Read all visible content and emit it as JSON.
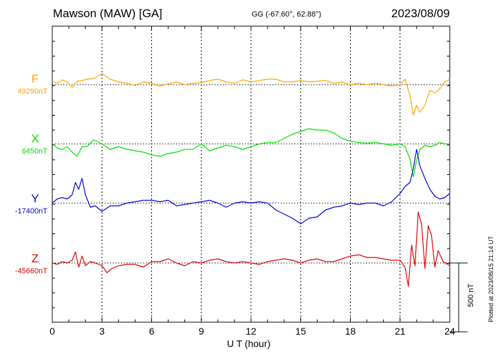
{
  "header": {
    "station": "Mawson (MAW)  [GA]",
    "coords": "GG (-67.60°,  62.88°)",
    "date": "2023/08/09"
  },
  "plotted_note": "Plotted at 2023/08/15 21:14 UT",
  "colors": {
    "F": "#f5a800",
    "X": "#00e000",
    "Y": "#0000e0",
    "Z": "#e00000"
  },
  "chart_data": {
    "type": "line",
    "xlabel": "U T (hour)",
    "xlim": [
      0,
      24
    ],
    "xticks": [
      0,
      3,
      6,
      9,
      12,
      15,
      18,
      21,
      24
    ],
    "scale_bar_label": "500 nT",
    "series": [
      {
        "name": "F",
        "baseline_label": "49290nT",
        "x": [
          0,
          0.3,
          0.6,
          0.9,
          1.2,
          1.5,
          1.8,
          2.1,
          2.5,
          3,
          3.5,
          4,
          4.5,
          5,
          5.5,
          6,
          6.5,
          7,
          7.5,
          8,
          8.5,
          9,
          9.5,
          10,
          10.5,
          11,
          11.5,
          12,
          12.5,
          13,
          13.5,
          14,
          14.5,
          15,
          15.5,
          16,
          16.5,
          17,
          17.5,
          18,
          18.5,
          19,
          19.5,
          20,
          20.5,
          21,
          21.3,
          21.6,
          21.8,
          22,
          22.2,
          22.5,
          22.8,
          23.1,
          23.4,
          23.7,
          24
        ],
        "values": [
          25,
          10,
          35,
          20,
          -20,
          25,
          30,
          40,
          45,
          80,
          40,
          20,
          10,
          -5,
          20,
          10,
          -10,
          5,
          20,
          0,
          10,
          15,
          30,
          40,
          20,
          10,
          35,
          20,
          30,
          40,
          40,
          20,
          20,
          30,
          20,
          25,
          30,
          10,
          20,
          0,
          10,
          0,
          10,
          0,
          -10,
          0,
          40,
          -80,
          -220,
          -150,
          -200,
          -150,
          -40,
          -60,
          -30,
          20,
          40
        ]
      },
      {
        "name": "X",
        "baseline_label": "6450nT",
        "x": [
          0,
          0.3,
          0.6,
          0.9,
          1.2,
          1.5,
          1.8,
          2.1,
          2.5,
          3,
          3.5,
          4,
          4.5,
          5,
          5.5,
          6,
          6.5,
          7,
          7.5,
          8,
          8.5,
          9,
          9.5,
          10,
          10.5,
          11,
          11.5,
          12,
          12.5,
          13,
          13.5,
          14,
          14.5,
          15,
          15.5,
          16,
          16.5,
          17,
          17.5,
          18,
          18.5,
          19,
          19.5,
          20,
          20.5,
          21,
          21.3,
          21.6,
          21.8,
          22,
          22.2,
          22.5,
          22.8,
          23.1,
          23.4,
          23.7,
          24
        ],
        "values": [
          5,
          -30,
          -40,
          -20,
          -60,
          -90,
          -20,
          -20,
          30,
          0,
          -40,
          -20,
          -40,
          -50,
          -60,
          -80,
          -90,
          -70,
          -60,
          -40,
          -40,
          0,
          -50,
          -30,
          -10,
          -20,
          -40,
          -20,
          0,
          10,
          10,
          40,
          70,
          90,
          110,
          100,
          100,
          80,
          40,
          20,
          10,
          5,
          10,
          0,
          -10,
          0,
          -20,
          -110,
          -240,
          -120,
          -40,
          -10,
          -20,
          -10,
          10,
          0,
          0
        ]
      },
      {
        "name": "Y",
        "baseline_label": "-17400nT",
        "x": [
          0,
          0.3,
          0.6,
          0.9,
          1.2,
          1.4,
          1.6,
          1.8,
          2,
          2.3,
          2.6,
          3,
          3.5,
          4,
          4.5,
          5,
          5.5,
          6,
          6.5,
          7,
          7.5,
          8,
          8.5,
          9,
          9.5,
          10,
          10.5,
          11,
          11.5,
          12,
          12.5,
          13,
          13.5,
          14,
          14.5,
          15,
          15.5,
          16,
          16.5,
          17,
          17.5,
          18,
          18.5,
          19,
          19.5,
          20,
          20.5,
          21,
          21.3,
          21.6,
          21.8,
          22,
          22.2,
          22.5,
          22.8,
          23.1,
          23.4,
          23.7,
          24
        ],
        "values": [
          0,
          30,
          40,
          30,
          60,
          150,
          100,
          180,
          60,
          -30,
          -20,
          -60,
          -20,
          -20,
          0,
          10,
          20,
          20,
          10,
          20,
          -20,
          -10,
          0,
          10,
          20,
          0,
          -30,
          0,
          10,
          0,
          10,
          0,
          -50,
          -80,
          -110,
          -150,
          -110,
          -100,
          -50,
          -30,
          -20,
          0,
          -10,
          0,
          0,
          -20,
          10,
          70,
          120,
          150,
          250,
          390,
          270,
          180,
          100,
          50,
          30,
          40,
          70
        ]
      },
      {
        "name": "Z",
        "baseline_label": "-45660nT",
        "x": [
          0,
          0.3,
          0.6,
          0.9,
          1.2,
          1.4,
          1.6,
          1.8,
          2,
          2.3,
          2.6,
          3,
          3.3,
          3.6,
          4,
          4.5,
          5,
          5.5,
          6,
          6.5,
          7,
          7.5,
          8,
          8.5,
          9,
          9.5,
          10,
          10.5,
          11,
          11.5,
          12,
          12.5,
          13,
          13.5,
          14,
          14.5,
          15,
          15.5,
          16,
          16.5,
          17,
          17.5,
          18,
          18.5,
          19,
          19.5,
          20,
          20.5,
          21,
          21.3,
          21.5,
          21.7,
          21.9,
          22.1,
          22.3,
          22.5,
          22.7,
          22.9,
          23.1,
          23.3,
          23.6,
          24
        ],
        "values": [
          0,
          -10,
          10,
          0,
          20,
          80,
          -30,
          50,
          -20,
          10,
          0,
          -20,
          -70,
          -40,
          -20,
          -10,
          -10,
          -30,
          10,
          10,
          30,
          0,
          -20,
          10,
          0,
          20,
          30,
          10,
          0,
          10,
          0,
          -10,
          10,
          20,
          30,
          20,
          0,
          20,
          30,
          10,
          10,
          30,
          50,
          60,
          40,
          40,
          30,
          20,
          20,
          -30,
          -170,
          130,
          -20,
          370,
          280,
          -40,
          270,
          200,
          -30,
          90,
          10,
          -20
        ]
      }
    ]
  }
}
